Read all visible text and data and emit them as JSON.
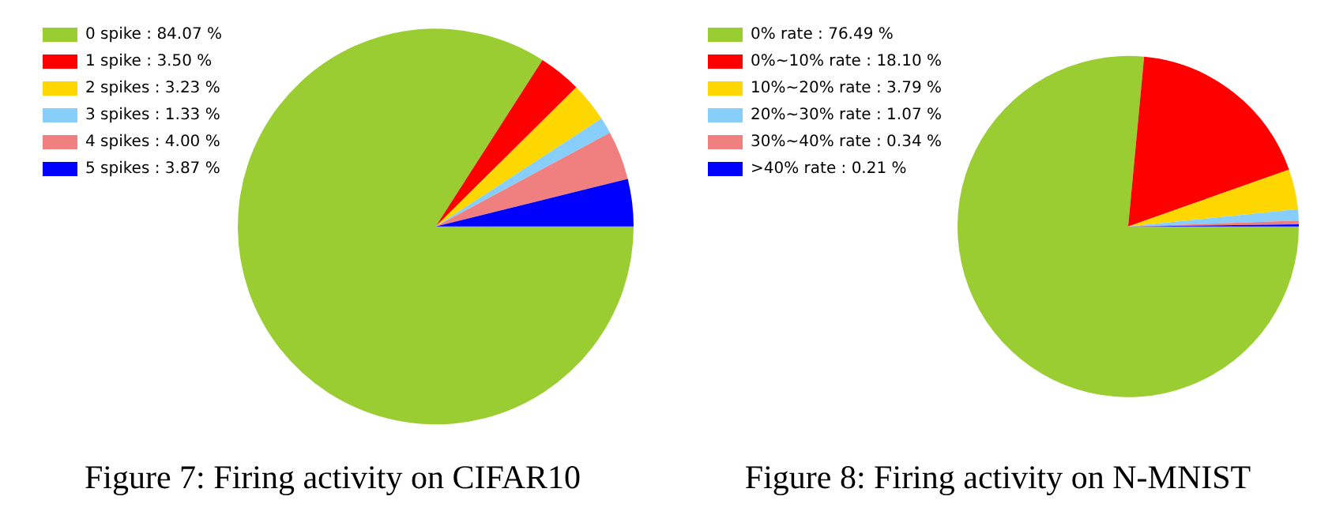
{
  "chart_data": [
    {
      "type": "pie",
      "title": "Figure 7: Firing activity on CIFAR10",
      "legend": "top left",
      "categories": [
        "0 spike : 84.07 %",
        "1 spike : 3.50 %",
        "2 spikes : 3.23 %",
        "3 spikes : 1.33 %",
        "4 spikes : 4.00 %",
        "5 spikes : 3.87 %"
      ],
      "values": [
        84.07,
        3.5,
        3.23,
        1.33,
        4.0,
        3.87
      ],
      "colors": [
        "#9acd32",
        "#ff0000",
        "#ffd700",
        "#87cefa",
        "#f08080",
        "#0000ff"
      ]
    },
    {
      "type": "pie",
      "title": "Figure 8: Firing activity on N-MNIST",
      "legend": "top left",
      "categories": [
        "0% rate : 76.49 %",
        "0%~10% rate : 18.10 %",
        "10%~20% rate : 3.79 %",
        "20%~30% rate : 1.07 %",
        "30%~40% rate : 0.34 %",
        ">40% rate : 0.21 %"
      ],
      "values": [
        76.49,
        18.1,
        3.79,
        1.07,
        0.34,
        0.21
      ],
      "colors": [
        "#9acd32",
        "#ff0000",
        "#ffd700",
        "#87cefa",
        "#f08080",
        "#0000ff"
      ]
    }
  ]
}
